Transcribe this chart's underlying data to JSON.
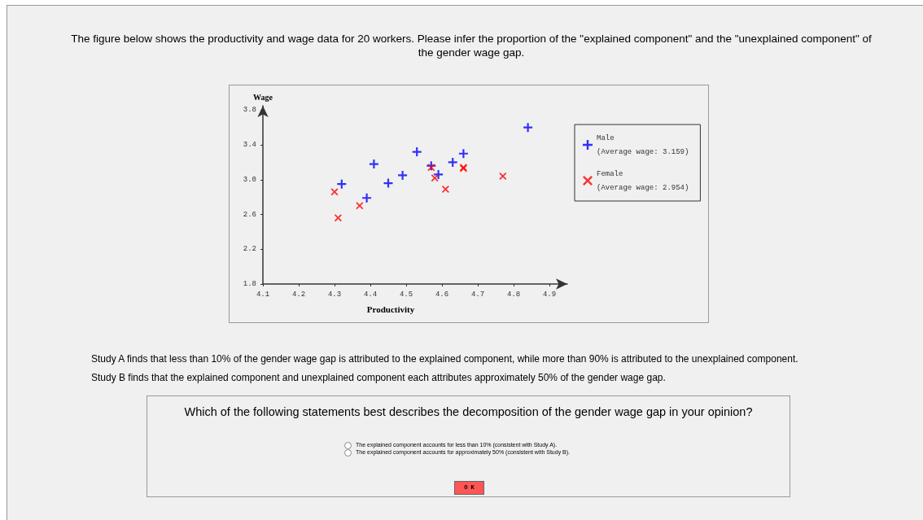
{
  "chart_data": {
    "type": "scatter",
    "title": "The figure below shows the productivity and wage data for 20 workers. Please infer the proportion of the \"explained component\" and the \"unexplained component\" of the gender wage gap.",
    "xlabel": "Productivity",
    "ylabel": "Wage",
    "xlim": [
      4.1,
      4.95
    ],
    "xticks": [
      4.1,
      4.2,
      4.3,
      4.4,
      4.5,
      4.6,
      4.7,
      4.8,
      4.9
    ],
    "ylim": [
      1.8,
      3.85
    ],
    "yticks": [
      1.8,
      2.2,
      2.6,
      {
        "value": 3,
        "label": "3.0"
      },
      3.4,
      3.8
    ],
    "grid": false,
    "legend": "right",
    "marker": "cross",
    "series": [
      {
        "name": "Male\n(Average wage: 3.159)",
        "color": "#0000ff",
        "x": [
          4.32,
          4.41,
          4.39,
          4.45,
          4.49,
          4.53,
          4.57,
          4.59,
          4.63,
          4.66,
          4.84
        ],
        "values": [
          2.95,
          3.18,
          2.79,
          2.96,
          3.05,
          3.32,
          3.16,
          3.06,
          3.2,
          3.3,
          3.6
        ]
      },
      {
        "name": "Female\n(Average wage: 2.954)",
        "color": "#ff0000",
        "x": [
          4.3,
          4.31,
          4.37,
          4.57,
          4.58,
          4.61,
          4.66,
          4.66,
          4.77
        ],
        "values": [
          2.86,
          2.56,
          2.7,
          3.14,
          3.02,
          2.89,
          3.13,
          3.14,
          3.04
        ]
      }
    ],
    "annotations": [
      "Study A finds that less than 10% of the gender wage gap is attributed to the explained component, while more than 90% is attributed to the unexplained component.",
      "Study B finds that the explained component and unexplained component each attributes approximately 50% of the gender wage gap.",
      "Which of the following statements best describes the decomposition of the gender wage gap in your opinion?",
      "The explained component accounts for less than 10% (consistent with Study A).",
      "The explained component accounts for approximately 50%  (consistent with Study B).",
      "O K"
    ]
  }
}
